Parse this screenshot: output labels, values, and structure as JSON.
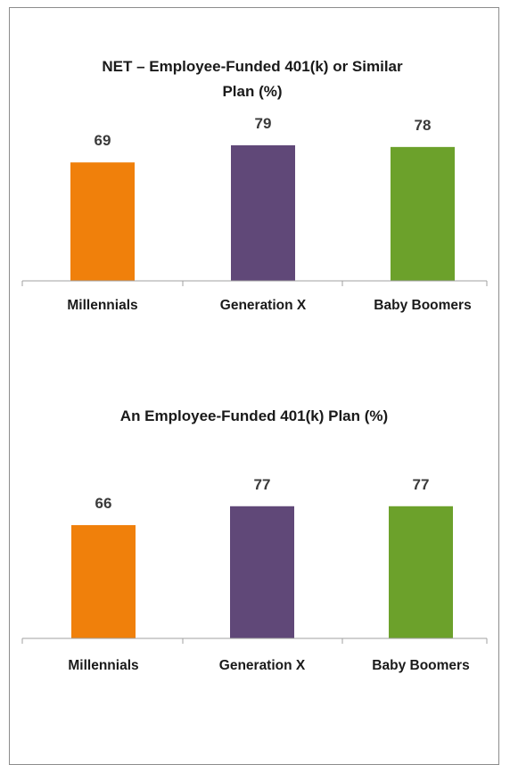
{
  "chart_data": [
    {
      "type": "bar",
      "title_lines": [
        "NET – Employee-Funded 401(k) or Similar",
        "Plan (%)"
      ],
      "categories": [
        "Millennials",
        "Generation X",
        "Baby Boomers"
      ],
      "values": [
        69,
        79,
        78
      ],
      "colors": [
        "#f0800b",
        "#604878",
        "#6ca12b"
      ]
    },
    {
      "type": "bar",
      "title_lines": [
        "An Employee-Funded 401(k) Plan (%)"
      ],
      "categories": [
        "Millennials",
        "Generation X",
        "Baby Boomers"
      ],
      "values": [
        66,
        77,
        77
      ],
      "colors": [
        "#f0800b",
        "#604878",
        "#6ca12b"
      ]
    }
  ]
}
